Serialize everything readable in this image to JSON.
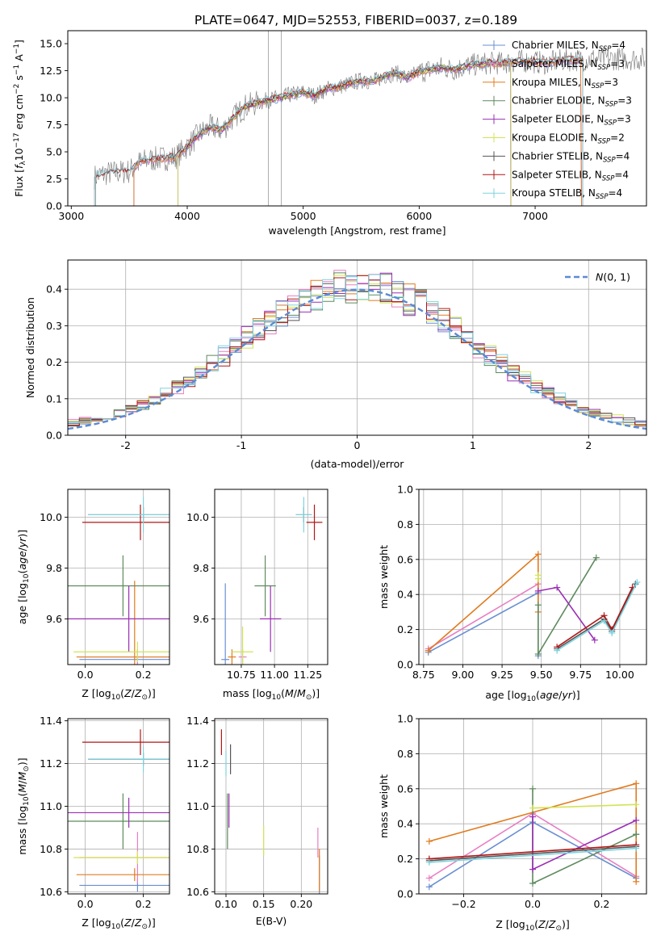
{
  "figure": {
    "title": "PLATE=0647, MJD=52553, FIBERID=0037, z=0.189"
  },
  "colors": {
    "Chabrier MILES": "#6a8fd1",
    "Salpeter MILES": "#e77fc2",
    "Kroupa MILES": "#e07b1f",
    "Chabrier ELODIE": "#5e8a5e",
    "Salpeter ELODIE": "#9b2fb5",
    "Kroupa ELODIE": "#d3e354",
    "Chabrier STELIB": "#555555",
    "Salpeter STELIB": "#b01717",
    "Kroupa STELIB": "#7ed3de",
    "data": "#777777",
    "gauss": "#5b8bd4"
  },
  "chart_data": [
    {
      "id": "spectrum",
      "type": "line",
      "xlabel": "wavelength [Angstrom, rest frame]",
      "ylabel": "Flux [f_λ10^{-17} erg cm^{-2} s^{-1} A^{-1}]",
      "xlim": [
        2970,
        7960
      ],
      "ylim": [
        0,
        16.2
      ],
      "xticks": [
        3000,
        4000,
        5000,
        6000,
        7000
      ],
      "yticks": [
        0.0,
        2.5,
        5.0,
        7.5,
        10.0,
        12.5,
        15.0
      ],
      "grid": false,
      "legend_position": "right",
      "legend": [
        {
          "label": "Chabrier MILES, N",
          "sub": "SSP",
          "suffix": "=4",
          "series": "Chabrier MILES"
        },
        {
          "label": "Salpeter MILES, N",
          "sub": "SSP",
          "suffix": "=3",
          "series": "Salpeter MILES"
        },
        {
          "label": "Kroupa MILES, N",
          "sub": "SSP",
          "suffix": "=3",
          "series": "Kroupa MILES"
        },
        {
          "label": "Chabrier ELODIE, N",
          "sub": "SSP",
          "suffix": "=3",
          "series": "Chabrier ELODIE"
        },
        {
          "label": "Salpeter ELODIE, N",
          "sub": "SSP",
          "suffix": "=3",
          "series": "Salpeter ELODIE"
        },
        {
          "label": "Kroupa ELODIE, N",
          "sub": "SSP",
          "suffix": "=2",
          "series": "Kroupa ELODIE"
        },
        {
          "label": "Chabrier STELIB, N",
          "sub": "SSP",
          "suffix": "=4",
          "series": "Chabrier STELIB"
        },
        {
          "label": "Salpeter STELIB, N",
          "sub": "SSP",
          "suffix": "=4",
          "series": "Salpeter STELIB"
        },
        {
          "label": "Kroupa STELIB, N",
          "sub": "SSP",
          "suffix": "=4",
          "series": "Kroupa STELIB"
        }
      ],
      "continuum": {
        "x": [
          3200,
          3300,
          3400,
          3500,
          3600,
          3700,
          3800,
          3900,
          4000,
          4100,
          4200,
          4300,
          4400,
          4500,
          4600,
          4700,
          4800,
          4900,
          5000,
          5100,
          5200,
          5300,
          5400,
          5500,
          5600,
          5700,
          5800,
          5900,
          6000,
          6100,
          6200,
          6300,
          6400,
          6500,
          6600,
          6700,
          6800,
          6900,
          7000,
          7100,
          7200,
          7300,
          7400,
          7500
        ],
        "y": [
          2.7,
          3.0,
          3.1,
          3.2,
          4.1,
          4.3,
          4.4,
          4.5,
          5.5,
          6.6,
          7.3,
          7.0,
          8.2,
          9.2,
          9.5,
          9.8,
          10.0,
          10.3,
          10.5,
          10.2,
          10.8,
          11.0,
          11.3,
          11.6,
          11.5,
          12.0,
          12.3,
          11.8,
          12.4,
          12.6,
          12.8,
          12.6,
          12.9,
          13.1,
          13.2,
          13.2,
          13.3,
          13.4,
          13.3,
          13.2,
          13.4,
          13.5,
          13.5,
          13.6
        ]
      },
      "model_ranges": {
        "Chabrier MILES": [
          3540,
          7400
        ],
        "Salpeter MILES": [
          3540,
          7400
        ],
        "Kroupa MILES": [
          3540,
          7400
        ],
        "Chabrier ELODIE": [
          3920,
          6790
        ],
        "Salpeter ELODIE": [
          3920,
          6790
        ],
        "Kroupa ELODIE": [
          3920,
          6790
        ],
        "Chabrier STELIB": [
          3210,
          7410
        ],
        "Salpeter STELIB": [
          3210,
          7410
        ],
        "Kroupa STELIB": [
          3210,
          7410
        ]
      },
      "data_range": [
        3200,
        7950
      ]
    },
    {
      "id": "residuals",
      "type": "histogram",
      "xlabel": "(data-model)/error",
      "ylabel": "Normed distribution",
      "xlim": [
        -2.5,
        2.5
      ],
      "ylim": [
        0,
        0.48
      ],
      "xticks": [
        -2,
        -1,
        0,
        1,
        2
      ],
      "yticks": [
        0.0,
        0.1,
        0.2,
        0.3,
        0.4
      ],
      "grid": true,
      "bin_width": 0.1,
      "legend": [
        {
          "label": "N(0,1)",
          "style": "dashed"
        }
      ],
      "legend_position": "top-right"
    },
    {
      "id": "age_vs_Z",
      "type": "errorbar",
      "xlabel": "Z [log10(Z/Z⊙)]",
      "ylabel": "age  [log10(age/yr)]",
      "xlim": [
        -0.06,
        0.29
      ],
      "ylim": [
        9.42,
        10.11
      ],
      "xticks": [
        0.0,
        0.2
      ],
      "yticks": [
        9.6,
        9.8,
        10.0
      ],
      "grid": true,
      "points": [
        {
          "series": "Chabrier MILES",
          "x": 0.18,
          "xerr": 0.2,
          "y": 9.44,
          "yerr": 0.04
        },
        {
          "series": "Salpeter MILES",
          "x": 0.18,
          "xerr": 0.2,
          "y": 9.45,
          "yerr": 0.03
        },
        {
          "series": "Kroupa MILES",
          "x": 0.17,
          "xerr": 0.2,
          "y": 9.45,
          "yerr": 0.3
        },
        {
          "series": "Chabrier ELODIE",
          "x": 0.13,
          "xerr": 0.25,
          "y": 9.73,
          "yerr": 0.12
        },
        {
          "series": "Salpeter ELODIE",
          "x": 0.15,
          "xerr": 0.22,
          "y": 9.6,
          "yerr": 0.13
        },
        {
          "series": "Kroupa ELODIE",
          "x": 0.18,
          "xerr": 0.22,
          "y": 9.47,
          "yerr": 0.04
        },
        {
          "series": "Chabrier STELIB",
          "x": 0.2,
          "xerr": 0.19,
          "y": 10.01,
          "yerr": 0.03
        },
        {
          "series": "Salpeter STELIB",
          "x": 0.19,
          "xerr": 0.2,
          "y": 9.98,
          "yerr": 0.07
        },
        {
          "series": "Kroupa STELIB",
          "x": 0.2,
          "xerr": 0.19,
          "y": 10.01,
          "yerr": 0.07
        }
      ]
    },
    {
      "id": "age_vs_mass",
      "type": "errorbar",
      "xlabel": "mass [log10(M/M⊙)]",
      "ylabel": "",
      "xlim": [
        10.55,
        11.4
      ],
      "ylim": [
        9.42,
        10.11
      ],
      "xticks": [
        10.75,
        11.0,
        11.25
      ],
      "yticks": [
        9.6,
        9.8,
        10.0
      ],
      "grid": true,
      "points": [
        {
          "series": "Chabrier MILES",
          "x": 10.63,
          "xerr": 0.03,
          "y": 9.44,
          "yerr": 0.3
        },
        {
          "series": "Salpeter MILES",
          "x": 10.76,
          "xerr": 0.03,
          "y": 9.45,
          "yerr": 0.03
        },
        {
          "series": "Kroupa MILES",
          "x": 10.68,
          "xerr": 0.03,
          "y": 9.45,
          "yerr": 0.03
        },
        {
          "series": "Chabrier ELODIE",
          "x": 10.93,
          "xerr": 0.08,
          "y": 9.73,
          "yerr": 0.12
        },
        {
          "series": "Salpeter ELODIE",
          "x": 10.97,
          "xerr": 0.08,
          "y": 9.6,
          "yerr": 0.13
        },
        {
          "series": "Kroupa ELODIE",
          "x": 10.76,
          "xerr": 0.08,
          "y": 9.47,
          "yerr": 0.1
        },
        {
          "series": "Chabrier STELIB",
          "x": 11.22,
          "xerr": 0.06,
          "y": 10.01,
          "yerr": 0.03
        },
        {
          "series": "Salpeter STELIB",
          "x": 11.3,
          "xerr": 0.06,
          "y": 9.98,
          "yerr": 0.07
        },
        {
          "series": "Kroupa STELIB",
          "x": 11.22,
          "xerr": 0.06,
          "y": 10.01,
          "yerr": 0.07
        }
      ]
    },
    {
      "id": "weight_vs_age",
      "type": "line",
      "xlabel": "age  [log10(age/yr)]",
      "ylabel": "mass weight",
      "xlim": [
        8.72,
        10.17
      ],
      "ylim": [
        0,
        1.0
      ],
      "xticks": [
        8.75,
        9.0,
        9.25,
        9.5,
        9.75,
        10.0
      ],
      "yticks": [
        0.0,
        0.2,
        0.4,
        0.6,
        0.8,
        1.0
      ],
      "grid": true,
      "series": [
        {
          "name": "Chabrier MILES",
          "x": [
            8.78,
            9.48,
            9.48
          ],
          "y": [
            0.07,
            0.41,
            0.05
          ]
        },
        {
          "name": "Salpeter MILES",
          "x": [
            8.78,
            9.48
          ],
          "y": [
            0.09,
            0.46
          ]
        },
        {
          "name": "Kroupa MILES",
          "x": [
            8.78,
            9.48,
            9.48
          ],
          "y": [
            0.08,
            0.63,
            0.3
          ]
        },
        {
          "name": "Chabrier ELODIE",
          "x": [
            9.48,
            9.48,
            9.85
          ],
          "y": [
            0.34,
            0.06,
            0.61
          ]
        },
        {
          "name": "Salpeter ELODIE",
          "x": [
            9.48,
            9.6,
            9.84
          ],
          "y": [
            0.42,
            0.44,
            0.14
          ]
        },
        {
          "name": "Kroupa ELODIE",
          "x": [
            9.48,
            9.48
          ],
          "y": [
            0.51,
            0.49
          ]
        },
        {
          "name": "Chabrier STELIB",
          "x": [
            9.6,
            9.9,
            9.95,
            10.1
          ],
          "y": [
            0.09,
            0.26,
            0.19,
            0.46
          ]
        },
        {
          "name": "Salpeter STELIB",
          "x": [
            9.6,
            9.9,
            9.95,
            10.08
          ],
          "y": [
            0.1,
            0.28,
            0.2,
            0.44
          ]
        },
        {
          "name": "Kroupa STELIB",
          "x": [
            9.6,
            9.9,
            9.95,
            10.11
          ],
          "y": [
            0.08,
            0.25,
            0.18,
            0.47
          ]
        }
      ]
    },
    {
      "id": "mass_vs_Z",
      "type": "errorbar",
      "xlabel": "Z [log10(Z/Z⊙)]",
      "ylabel": "mass [log10(M/M⊙)]",
      "xlim": [
        -0.06,
        0.29
      ],
      "ylim": [
        10.59,
        11.41
      ],
      "xticks": [
        0.0,
        0.2
      ],
      "yticks": [
        10.6,
        10.8,
        11.0,
        11.2,
        11.4
      ],
      "grid": true,
      "points": [
        {
          "series": "Chabrier MILES",
          "x": 0.18,
          "xerr": 0.2,
          "y": 10.63,
          "yerr": 0.03
        },
        {
          "series": "Salpeter MILES",
          "x": 0.18,
          "xerr": 0.2,
          "y": 10.76,
          "yerr": 0.12
        },
        {
          "series": "Kroupa MILES",
          "x": 0.17,
          "xerr": 0.2,
          "y": 10.68,
          "yerr": 0.03
        },
        {
          "series": "Chabrier ELODIE",
          "x": 0.13,
          "xerr": 0.25,
          "y": 10.93,
          "yerr": 0.13
        },
        {
          "series": "Salpeter ELODIE",
          "x": 0.15,
          "xerr": 0.22,
          "y": 10.97,
          "yerr": 0.07
        },
        {
          "series": "Kroupa ELODIE",
          "x": 0.18,
          "xerr": 0.22,
          "y": 10.76,
          "yerr": 0.03
        },
        {
          "series": "Chabrier STELIB",
          "x": 0.2,
          "xerr": 0.19,
          "y": 11.22,
          "yerr": 0.03
        },
        {
          "series": "Salpeter STELIB",
          "x": 0.19,
          "xerr": 0.2,
          "y": 11.3,
          "yerr": 0.06
        },
        {
          "series": "Kroupa STELIB",
          "x": 0.2,
          "xerr": 0.19,
          "y": 11.22,
          "yerr": 0.06
        }
      ]
    },
    {
      "id": "mass_vs_ebv",
      "type": "errorbar",
      "xlabel": "E(B-V)",
      "ylabel": "",
      "xlim": [
        0.085,
        0.235
      ],
      "ylim": [
        10.59,
        11.41
      ],
      "xticks": [
        0.1,
        0.15,
        0.2
      ],
      "yticks": [
        10.6,
        10.8,
        11.0,
        11.2,
        11.4
      ],
      "grid": true,
      "points": [
        {
          "series": "Chabrier MILES",
          "x": 0.224,
          "xerr": 0,
          "y": 10.67,
          "yerr": 0.1
        },
        {
          "series": "Salpeter MILES",
          "x": 0.222,
          "xerr": 0,
          "y": 10.83,
          "yerr": 0.07
        },
        {
          "series": "Kroupa MILES",
          "x": 0.224,
          "xerr": 0,
          "y": 10.7,
          "yerr": 0.1
        },
        {
          "series": "Chabrier ELODIE",
          "x": 0.102,
          "xerr": 0,
          "y": 10.93,
          "yerr": 0.13
        },
        {
          "series": "Salpeter ELODIE",
          "x": 0.104,
          "xerr": 0,
          "y": 10.98,
          "yerr": 0.08
        },
        {
          "series": "Kroupa ELODIE",
          "x": 0.15,
          "xerr": 0,
          "y": 10.84,
          "yerr": 0.07
        },
        {
          "series": "Chabrier STELIB",
          "x": 0.106,
          "xerr": 0,
          "y": 11.22,
          "yerr": 0.07
        },
        {
          "series": "Salpeter STELIB",
          "x": 0.094,
          "xerr": 0,
          "y": 11.3,
          "yerr": 0.06
        },
        {
          "series": "Kroupa STELIB",
          "x": 0.1,
          "xerr": 0,
          "y": 11.2,
          "yerr": 0.06
        }
      ]
    },
    {
      "id": "weight_vs_Z",
      "type": "line",
      "xlabel": "Z [log10(Z/Z⊙)]",
      "ylabel": "mass weight",
      "xlim": [
        -0.33,
        0.33
      ],
      "ylim": [
        0,
        1.0
      ],
      "xticks": [
        -0.2,
        0.0,
        0.2
      ],
      "yticks": [
        0.0,
        0.2,
        0.4,
        0.6,
        0.8,
        1.0
      ],
      "grid": true,
      "series": [
        {
          "name": "Chabrier MILES",
          "x": [
            -0.3,
            0.0,
            0.3
          ],
          "y": [
            0.04,
            0.41,
            0.09
          ]
        },
        {
          "name": "Salpeter MILES",
          "x": [
            -0.3,
            0.0,
            0.3
          ],
          "y": [
            0.09,
            0.46,
            0.1
          ]
        },
        {
          "name": "Kroupa MILES",
          "x": [
            -0.3,
            0.3,
            0.3
          ],
          "y": [
            0.3,
            0.63,
            0.07
          ]
        },
        {
          "name": "Chabrier ELODIE",
          "x": [
            0.0,
            0.0,
            0.3,
            0.3
          ],
          "y": [
            0.6,
            0.06,
            0.34,
            0.34
          ]
        },
        {
          "name": "Salpeter ELODIE",
          "x": [
            0.0,
            0.0,
            0.3
          ],
          "y": [
            0.44,
            0.14,
            0.42
          ]
        },
        {
          "name": "Kroupa ELODIE",
          "x": [
            0.0,
            0.3
          ],
          "y": [
            0.49,
            0.51
          ]
        },
        {
          "name": "Chabrier STELIB",
          "x": [
            -0.3,
            0.3
          ],
          "y": [
            0.19,
            0.27
          ]
        },
        {
          "name": "Salpeter STELIB",
          "x": [
            -0.3,
            0.3
          ],
          "y": [
            0.2,
            0.28
          ]
        },
        {
          "name": "Kroupa STELIB",
          "x": [
            -0.3,
            0.3
          ],
          "y": [
            0.18,
            0.26
          ]
        }
      ]
    }
  ]
}
